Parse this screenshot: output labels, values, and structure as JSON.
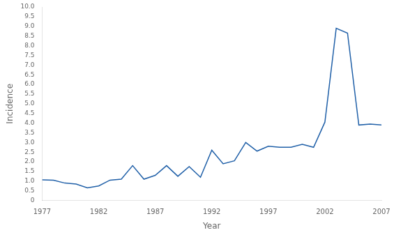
{
  "chart_data": {
    "type": "line",
    "x": [
      1977,
      1978,
      1979,
      1980,
      1981,
      1982,
      1983,
      1984,
      1985,
      1986,
      1987,
      1988,
      1989,
      1990,
      1991,
      1992,
      1993,
      1994,
      1995,
      1996,
      1997,
      1998,
      1999,
      2000,
      2001,
      2002,
      2003,
      2004,
      2005,
      2006,
      2007
    ],
    "values": [
      1.07,
      1.05,
      0.9,
      0.85,
      0.65,
      0.75,
      1.05,
      1.1,
      1.8,
      1.1,
      1.3,
      1.8,
      1.25,
      1.75,
      1.2,
      2.6,
      1.9,
      2.05,
      3.0,
      2.55,
      2.8,
      2.75,
      2.75,
      2.9,
      2.75,
      4.05,
      8.9,
      8.65,
      3.9,
      3.95,
      3.9
    ],
    "color": "#2060a8",
    "x_label": "Year",
    "y_label": "Incidence",
    "xlim": [
      1977,
      2007
    ],
    "ylim": [
      0,
      10.0
    ],
    "xticks": [
      1977,
      1982,
      1987,
      1992,
      1997,
      2002,
      2007
    ],
    "yticks": [
      0,
      0.5,
      {
        "value": 1.0,
        "label": "1.0"
      },
      1.5,
      {
        "value": 2.0,
        "label": "2.0"
      },
      2.5,
      {
        "value": 3.0,
        "label": "3.0"
      },
      3.5,
      {
        "value": 4.0,
        "label": "4.0"
      },
      4.5,
      {
        "value": 5.0,
        "label": "5.0"
      },
      5.5,
      {
        "value": 6.0,
        "label": "6.0"
      },
      6.5,
      {
        "value": 7.0,
        "label": "7.0"
      },
      7.5,
      {
        "value": 8.0,
        "label": "8.0"
      },
      8.5,
      {
        "value": 9.0,
        "label": "9.0"
      },
      9.5,
      {
        "value": 10.0,
        "label": "10.0"
      }
    ],
    "grid": false
  }
}
